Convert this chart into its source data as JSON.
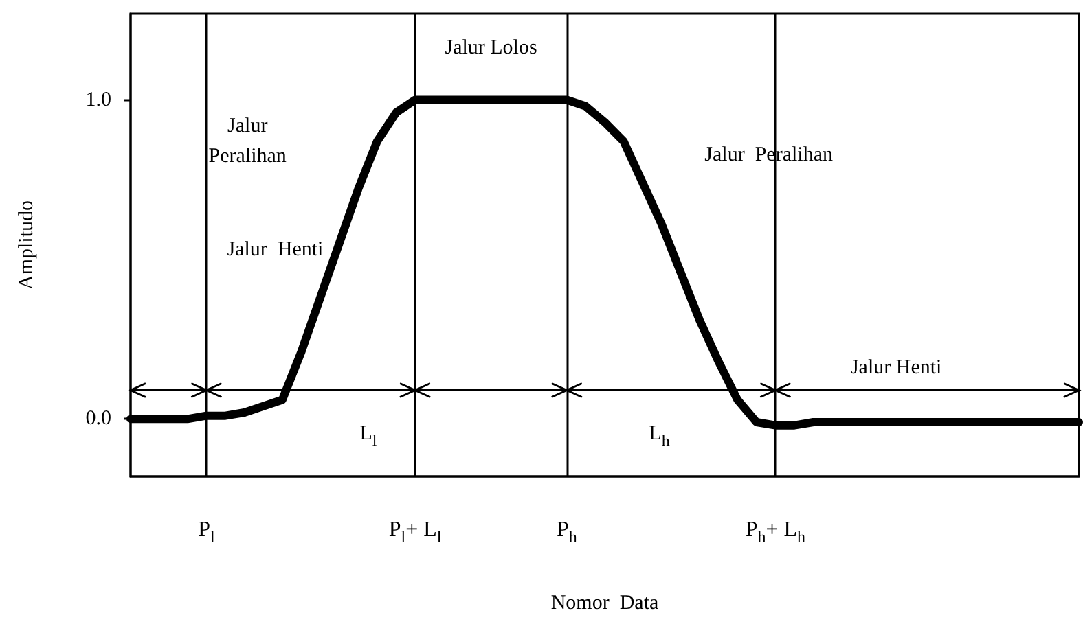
{
  "chart_data": {
    "type": "line",
    "xlabel": "Nomor  Data",
    "ylabel": "Amplitudo",
    "categories": [
      null,
      null,
      null,
      null,
      "P$_{l}$",
      null,
      null,
      null,
      null,
      null,
      null,
      null,
      null,
      null,
      null,
      "P$_{l}$+ L$_{l}$",
      null,
      null,
      null,
      null,
      null,
      null,
      null,
      "P$_{h}$",
      null,
      null,
      null,
      null,
      null,
      null,
      null,
      null,
      null,
      null,
      "P$_{h}$+ L$_{h}$",
      null,
      null,
      null,
      null,
      null,
      null,
      null,
      null,
      null,
      null,
      null,
      null,
      null,
      null,
      null,
      null
    ],
    "series": [
      {
        "color": "#000000",
        "values": [
          0,
          0,
          0,
          0,
          0.01,
          0.01,
          0.02,
          0.04,
          0.06,
          0.21,
          0.38,
          0.55,
          0.72,
          0.87,
          0.96,
          1.0,
          1.0,
          1.0,
          1.0,
          1.0,
          1.0,
          1.0,
          1.0,
          1.0,
          0.98,
          0.93,
          0.87,
          0.74,
          0.61,
          0.46,
          0.31,
          0.18,
          0.06,
          -0.01,
          -0.02,
          -0.02,
          -0.01,
          -0.01,
          -0.01,
          -0.01,
          -0.01,
          -0.01,
          -0.01,
          -0.01,
          -0.01,
          -0.01,
          -0.01,
          -0.01,
          -0.01,
          -0.01,
          -0.01
        ]
      }
    ],
    "ylim": [
      -0.18,
      1.27
    ],
    "yticks": [
      {
        "value": 0,
        "label": "0.0"
      },
      {
        "value": 1,
        "label": "1.0"
      }
    ],
    "ref_lines": [
      {
        "axis": "x",
        "value": "P$_{l}$",
        "label": null
      },
      {
        "axis": "x",
        "value": "P$_{l}$+ L$_{l}$",
        "label": null
      },
      {
        "axis": "x",
        "value": "P$_{h}$",
        "label": null
      },
      {
        "axis": "x",
        "value": "P$_{h}$+ L$_{h}$",
        "label": null
      },
      {
        "axis": "y",
        "value": 0.09,
        "label": null
      }
    ],
    "annotations": [
      "Jalur Lolos",
      "Jalur\nPeralihan",
      "Jalur  Henti",
      "Jalur  Peralihan",
      "Jalur Henti",
      "L$_{l}$",
      "L$_{h}$"
    ],
    "grid": false,
    "marker": "none",
    "line_style": "solid"
  }
}
